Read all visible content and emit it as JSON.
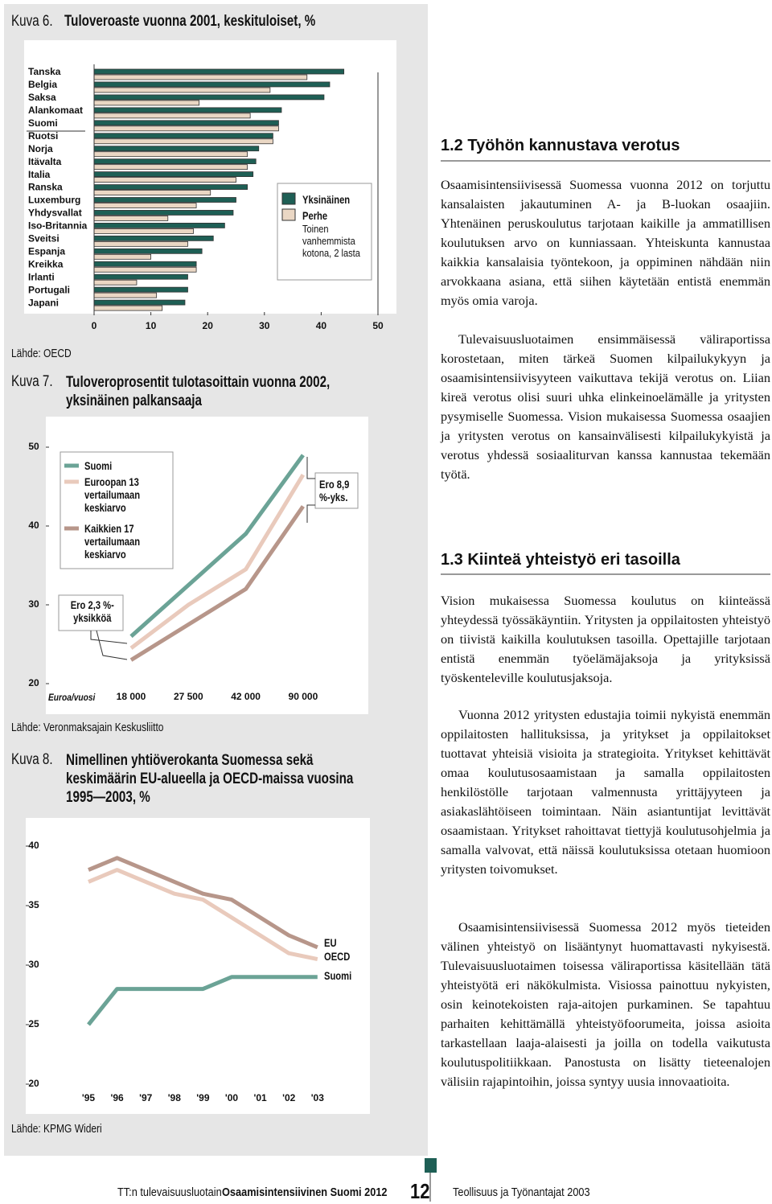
{
  "chart_data": [
    {
      "type": "hbar",
      "label": "Kuva 6.",
      "title": "Tuloveroaste vuonna 2001, keskituloiset, %",
      "source": "Lähde: OECD",
      "categories": [
        "Tanska",
        "Belgia",
        "Saksa",
        "Alankomaat",
        "Suomi",
        "Ruotsi",
        "Norja",
        "Itävalta",
        "Italia",
        "Ranska",
        "Luxemburg",
        "Yhdysvallat",
        "Iso-Britannia",
        "Sveitsi",
        "Espanja",
        "Kreikka",
        "Irlanti",
        "Portugali",
        "Japani"
      ],
      "series": [
        {
          "name": "Yksinäinen",
          "color": "#1e5f55",
          "values": [
            44,
            41.5,
            40.5,
            33,
            32.5,
            31.5,
            29,
            28.5,
            28,
            27,
            25,
            24.5,
            23,
            21,
            19,
            18,
            16.5,
            16.5,
            16
          ]
        },
        {
          "name": "Perhe",
          "color": "#ead7c4",
          "values": [
            37.5,
            31,
            18.5,
            27.5,
            32.5,
            31.5,
            27,
            27,
            25,
            20.5,
            18,
            13,
            17.5,
            16.5,
            10,
            18,
            7.5,
            11,
            12
          ]
        }
      ],
      "legend_note": "Toinen vanhemmista kotona, 2 lasta",
      "xlim": [
        0,
        50
      ],
      "xticks": [
        0,
        10,
        20,
        30,
        40,
        50
      ]
    },
    {
      "type": "line",
      "label": "Kuva 7.",
      "title": "Tuloveroprosentit tulotasoittain vuonna 2002, yksinäinen palkansaaja",
      "source": "Lähde: Veronmaksajain Keskusliitto",
      "x_label": "Euroa/vuosi",
      "categories": [
        "18 000",
        "27 500",
        "42 000",
        "90 000"
      ],
      "series": [
        {
          "name": "Suomi",
          "color": "#6ba396",
          "values": [
            26,
            32.5,
            39,
            49
          ]
        },
        {
          "name": "Euroopan 13 vertailumaan keskiarvo",
          "color": "#e9cabc",
          "values": [
            24.5,
            30,
            34.5,
            46.5
          ]
        },
        {
          "name": "Kaikkien 17 vertailumaan keskiarvo",
          "color": "#b7968a",
          "values": [
            23,
            27.5,
            32,
            42.5
          ]
        }
      ],
      "annotations": [
        "Ero 8,9 %-yks.",
        "Ero 2,3 %-yksikköä"
      ],
      "ylim": [
        20,
        50
      ],
      "yticks": [
        20,
        30,
        40,
        50
      ]
    },
    {
      "type": "line",
      "label": "Kuva 8.",
      "title": "Nimellinen yhtiöverokanta Suomessa sekä keskimäärin EU-alueella ja OECD-maissa vuosina 1995—2003, %",
      "source": "Lähde: KPMG Wideri",
      "categories": [
        "'95",
        "'96",
        "'97",
        "'98",
        "'99",
        "'00",
        "'01",
        "'02",
        "'03"
      ],
      "series": [
        {
          "name": "EU",
          "color": "#b7968a",
          "values": [
            38,
            39,
            38,
            37,
            36,
            35.5,
            34,
            32.5,
            31.5
          ]
        },
        {
          "name": "OECD",
          "color": "#e9cabc",
          "values": [
            37,
            38,
            37,
            36,
            35.5,
            34,
            32.5,
            31,
            30.5
          ]
        },
        {
          "name": "Suomi",
          "color": "#6ba396",
          "values": [
            25,
            28,
            28,
            28,
            28,
            29,
            29,
            29,
            29
          ]
        }
      ],
      "ylim": [
        20,
        40
      ],
      "yticks": [
        20,
        25,
        30,
        35,
        40
      ]
    }
  ],
  "sections": [
    {
      "heading": "1.2 Työhön kannustava verotus",
      "paragraphs": [
        "Osaamisintensiivisessä Suomessa vuonna 2012 on torjuttu kansalaisten jakautuminen A- ja B-luokan osaajiin. Yhtenäinen peruskoulutus tarjotaan kaikille ja ammatillisen koulutuksen arvo on kunniassaan. Yhteiskunta kannustaa kaikkia kansalaisia työntekoon, ja oppiminen nähdään niin arvokkaana asiana, että siihen käytetään entistä enemmän myös omia varoja.",
        "Tulevaisuusluotaimen ensimmäisessä väliraportissa korostetaan, miten tärkeä Suomen kilpailukykyyn ja osaamisintensiivisyyteen vaikuttava tekijä verotus on. Liian kireä verotus olisi suuri uhka elinkeinoelämälle ja yritysten pysymiselle Suomessa. Vision mukaisessa Suomessa osaajien ja yritysten verotus on kansainvälisesti kilpailukykyistä ja verotus yhdessä sosiaaliturvan kanssa kannustaa tekemään työtä."
      ]
    },
    {
      "heading": "1.3 Kiinteä yhteistyö eri tasoilla",
      "paragraphs": [
        "Vision mukaisessa Suomessa koulutus on kiinteässä yhteydessä työssäkäyntiin. Yritysten ja oppilaitosten yhteistyö on tiivistä kaikilla koulutuksen tasoilla. Opettajille tarjotaan entistä enemmän työelämäjaksoja ja yrityksissä työskenteleville koulutusjaksoja.",
        "Vuonna 2012 yritysten edustajia toimii nykyistä enemmän oppilaitosten hallituksissa, ja yritykset ja oppilaitokset tuottavat yhteisiä visioita ja strategioita. Yritykset kehittävät omaa koulutusosaamistaan ja samalla oppilaitosten henkilöstölle tarjotaan valmennusta yrittäjyyteen ja asiakaslähtöiseen toimintaan. Näin asiantuntijat levittävät osaamistaan. Yritykset rahoittavat tiettyjä koulutusohjelmia ja samalla valvovat, että näissä koulutuksissa otetaan huomioon yritysten toivomukset.",
        "Osaamisintensiivisessä Suomessa 2012 myös tieteiden välinen yhteistyö on lisääntynyt huomattavasti nykyisestä. Tulevaisuusluotaimen toisessa väliraportissa käsitellään tätä yhteistyötä eri näkökulmista. Visiossa painottuu nykyisten, osin keinotekoisten raja-aitojen purkaminen. Se tapahtuu parhaiten kehittämällä yhteistyöfoorumeita, joissa asioita tarkastellaan laaja-alaisesti ja joilla on todella vaikutusta koulutuspolitiikkaan. Panostusta on lisätty tieteenalojen välisiin rajapintoihin, joissa syntyy uusia innovaatioita."
      ]
    }
  ],
  "footer": {
    "series": "TT:n tulevaisuusluotain",
    "title": "Osaamisintensiivinen Suomi 2012",
    "page": 12,
    "publisher": "Teollisuus ja Työnantajat 2003"
  }
}
